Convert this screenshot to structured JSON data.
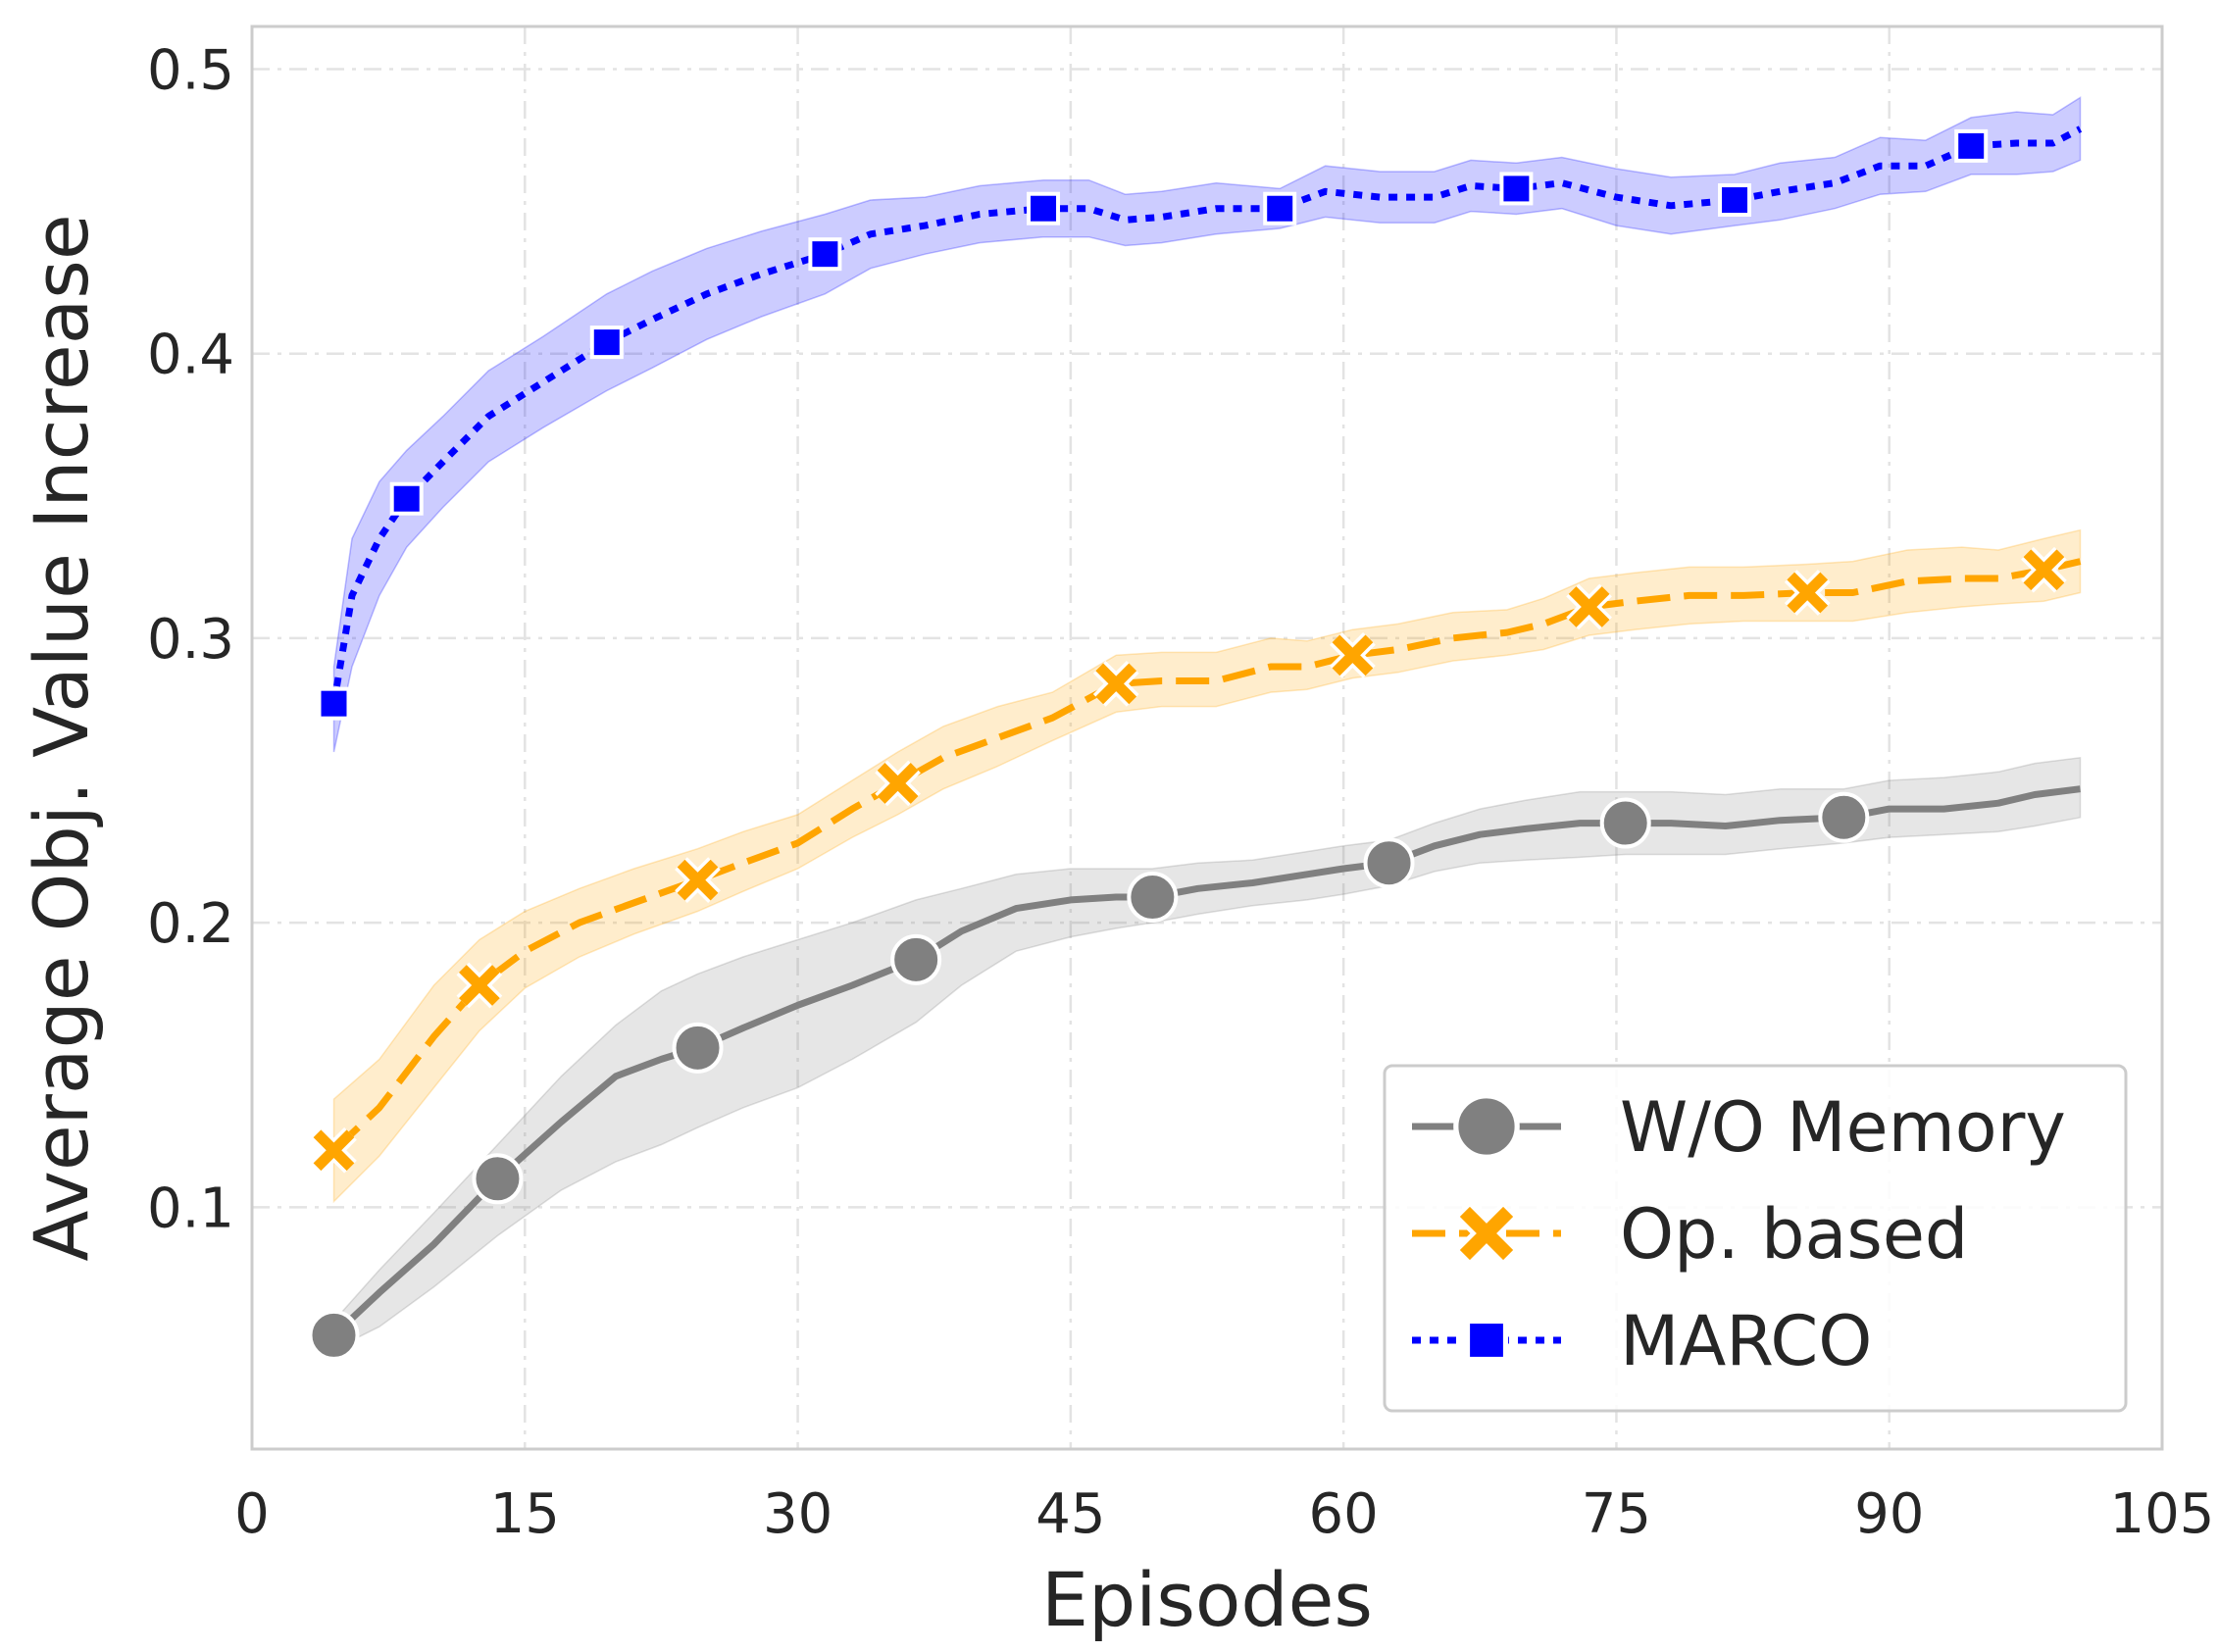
{
  "chart_data": {
    "type": "line",
    "title": "",
    "xlabel": "Episodes",
    "ylabel": "Average Obj. Value Increase",
    "xlim": [
      0,
      105
    ],
    "ylim": [
      0.015,
      0.515
    ],
    "xticks": [
      0,
      15,
      30,
      45,
      60,
      75,
      90,
      105
    ],
    "yticks": [
      0.1,
      0.2,
      0.3,
      0.4,
      0.5
    ],
    "xtick_labels": [
      "0",
      "15",
      "30",
      "45",
      "60",
      "75",
      "90",
      "105"
    ],
    "ytick_labels": [
      "0.1",
      "0.2",
      "0.3",
      "0.4",
      "0.5"
    ],
    "grid": true,
    "legend_position": "lower-right",
    "series": [
      {
        "name": "W/O Memory",
        "color": "#808080",
        "line_style": "solid",
        "marker": "circle",
        "x": [
          4.5,
          7,
          10,
          13.5,
          17,
          20,
          22.5,
          24.5,
          27,
          30,
          33,
          36.5,
          39,
          42,
          45,
          47.5,
          49.5,
          52,
          55,
          58,
          60,
          62.5,
          65,
          67.5,
          70,
          73,
          75.5,
          78,
          81,
          84,
          87.5,
          90,
          93,
          96,
          98,
          100.5
        ],
        "y": [
          0.055,
          0.07,
          0.087,
          0.11,
          0.13,
          0.146,
          0.152,
          0.156,
          0.163,
          0.171,
          0.178,
          0.187,
          0.197,
          0.205,
          0.208,
          0.209,
          0.209,
          0.212,
          0.214,
          0.217,
          0.219,
          0.221,
          0.227,
          0.231,
          0.233,
          0.235,
          0.235,
          0.235,
          0.234,
          0.236,
          0.237,
          0.24,
          0.24,
          0.242,
          0.245,
          0.247
        ],
        "band_lower": [
          0.05,
          0.058,
          0.072,
          0.09,
          0.106,
          0.116,
          0.122,
          0.128,
          0.135,
          0.142,
          0.152,
          0.165,
          0.178,
          0.19,
          0.195,
          0.198,
          0.2,
          0.203,
          0.206,
          0.208,
          0.21,
          0.213,
          0.218,
          0.221,
          0.222,
          0.223,
          0.224,
          0.224,
          0.224,
          0.226,
          0.228,
          0.23,
          0.231,
          0.232,
          0.234,
          0.237
        ],
        "band_upper": [
          0.06,
          0.078,
          0.098,
          0.122,
          0.146,
          0.164,
          0.176,
          0.182,
          0.188,
          0.194,
          0.2,
          0.208,
          0.212,
          0.217,
          0.219,
          0.219,
          0.219,
          0.221,
          0.222,
          0.225,
          0.227,
          0.229,
          0.235,
          0.24,
          0.243,
          0.246,
          0.246,
          0.246,
          0.245,
          0.247,
          0.247,
          0.25,
          0.251,
          0.253,
          0.256,
          0.258
        ],
        "marker_x": [
          4.5,
          13.5,
          24.5,
          36.5,
          49.5,
          62.5,
          75.5,
          87.5
        ],
        "marker_y": [
          0.055,
          0.11,
          0.156,
          0.187,
          0.209,
          0.221,
          0.235,
          0.237
        ]
      },
      {
        "name": "Op. based",
        "color": "#ffa500",
        "line_style": "dashed",
        "marker": "x",
        "x": [
          4.5,
          7,
          10,
          12.5,
          15,
          18,
          21,
          24.5,
          27,
          30,
          33,
          35.5,
          38,
          41,
          44,
          47.5,
          50,
          53,
          56,
          58,
          60.5,
          63,
          66,
          69,
          71,
          73.5,
          76,
          79,
          82,
          85.5,
          88,
          91,
          94,
          96,
          98.5,
          100.5
        ],
        "y": [
          0.12,
          0.135,
          0.16,
          0.178,
          0.19,
          0.2,
          0.207,
          0.215,
          0.221,
          0.228,
          0.24,
          0.249,
          0.258,
          0.265,
          0.272,
          0.284,
          0.285,
          0.285,
          0.29,
          0.29,
          0.294,
          0.296,
          0.3,
          0.302,
          0.305,
          0.311,
          0.313,
          0.315,
          0.315,
          0.316,
          0.316,
          0.32,
          0.321,
          0.321,
          0.324,
          0.327
        ],
        "band_lower": [
          0.102,
          0.118,
          0.142,
          0.162,
          0.177,
          0.188,
          0.196,
          0.204,
          0.211,
          0.219,
          0.23,
          0.238,
          0.247,
          0.255,
          0.264,
          0.274,
          0.276,
          0.276,
          0.281,
          0.282,
          0.286,
          0.288,
          0.292,
          0.294,
          0.296,
          0.301,
          0.303,
          0.305,
          0.306,
          0.306,
          0.306,
          0.309,
          0.311,
          0.312,
          0.313,
          0.316
        ],
        "band_upper": [
          0.138,
          0.152,
          0.178,
          0.194,
          0.204,
          0.212,
          0.219,
          0.226,
          0.232,
          0.238,
          0.25,
          0.26,
          0.269,
          0.276,
          0.281,
          0.294,
          0.295,
          0.295,
          0.3,
          0.299,
          0.303,
          0.305,
          0.309,
          0.31,
          0.314,
          0.321,
          0.323,
          0.325,
          0.325,
          0.326,
          0.327,
          0.331,
          0.332,
          0.331,
          0.335,
          0.338
        ],
        "marker_x": [
          4.5,
          12.5,
          24.5,
          35.5,
          47.5,
          60.5,
          73.5,
          85.5,
          98.5
        ],
        "marker_y": [
          0.12,
          0.178,
          0.215,
          0.249,
          0.284,
          0.294,
          0.311,
          0.316,
          0.324
        ]
      },
      {
        "name": "MARCO",
        "color": "#0000ff",
        "line_style": "dotted",
        "marker": "square",
        "x": [
          4.5,
          5.5,
          7,
          8.5,
          10.5,
          13,
          16,
          19.5,
          22,
          25,
          28,
          31.5,
          34,
          37,
          40,
          43.5,
          46,
          48,
          50,
          53,
          56.5,
          59,
          62,
          65,
          67,
          69.5,
          72,
          75,
          78,
          81.5,
          84,
          87,
          89.5,
          92,
          94.5,
          97,
          99,
          100.5
        ],
        "y": [
          0.277,
          0.315,
          0.335,
          0.349,
          0.362,
          0.378,
          0.39,
          0.404,
          0.412,
          0.421,
          0.428,
          0.435,
          0.442,
          0.445,
          0.449,
          0.451,
          0.451,
          0.447,
          0.448,
          0.451,
          0.451,
          0.457,
          0.455,
          0.455,
          0.459,
          0.458,
          0.46,
          0.455,
          0.452,
          0.454,
          0.457,
          0.46,
          0.466,
          0.466,
          0.473,
          0.474,
          0.474,
          0.479
        ],
        "band_lower": [
          0.26,
          0.29,
          0.315,
          0.332,
          0.346,
          0.362,
          0.374,
          0.387,
          0.395,
          0.405,
          0.413,
          0.421,
          0.43,
          0.435,
          0.439,
          0.441,
          0.441,
          0.438,
          0.439,
          0.442,
          0.444,
          0.448,
          0.446,
          0.446,
          0.45,
          0.449,
          0.451,
          0.445,
          0.442,
          0.445,
          0.447,
          0.451,
          0.456,
          0.457,
          0.463,
          0.463,
          0.464,
          0.468
        ],
        "band_upper": [
          0.29,
          0.335,
          0.355,
          0.366,
          0.378,
          0.394,
          0.406,
          0.421,
          0.429,
          0.437,
          0.443,
          0.449,
          0.454,
          0.455,
          0.459,
          0.461,
          0.461,
          0.456,
          0.457,
          0.46,
          0.458,
          0.466,
          0.464,
          0.464,
          0.468,
          0.467,
          0.469,
          0.465,
          0.462,
          0.463,
          0.467,
          0.469,
          0.476,
          0.475,
          0.483,
          0.485,
          0.484,
          0.49
        ],
        "marker_x": [
          4.5,
          8.5,
          19.5,
          31.5,
          43.5,
          56.5,
          69.5,
          81.5,
          94.5
        ],
        "marker_y": [
          0.277,
          0.349,
          0.404,
          0.435,
          0.451,
          0.451,
          0.458,
          0.454,
          0.473
        ]
      }
    ]
  }
}
